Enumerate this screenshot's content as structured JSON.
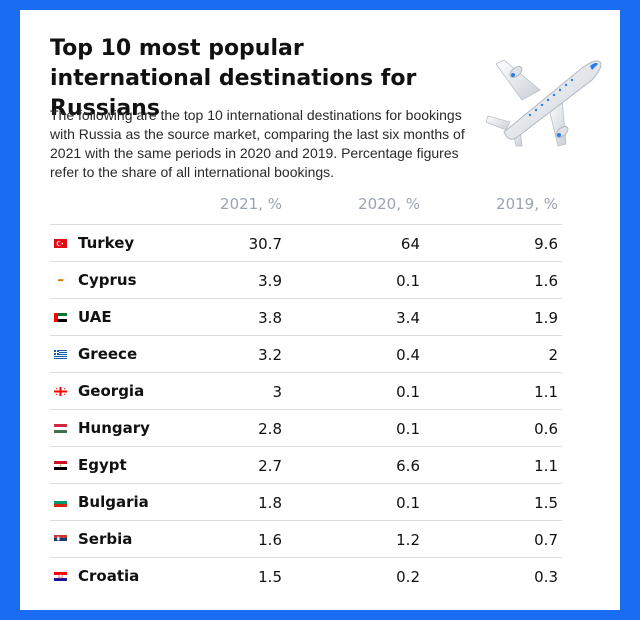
{
  "chart_data": {
    "type": "table",
    "title": "Top 10 most popular international destinations for Russians",
    "subtitle": "The following are the top 10 international destinations for bookings with Russia as the source market, comparing the last six months of 2021 with the same periods in 2020 and 2019. Percentage figures refer to the share of all international bookings.",
    "columns": [
      "2021, %",
      "2020, %",
      "2019, %"
    ],
    "rows": [
      {
        "country": "Turkey",
        "flag": "turkey-flag-icon",
        "values": [
          "30.7",
          "64",
          "9.6"
        ]
      },
      {
        "country": "Cyprus",
        "flag": "cyprus-flag-icon",
        "values": [
          "3.9",
          "0.1",
          "1.6"
        ]
      },
      {
        "country": "UAE",
        "flag": "uae-flag-icon",
        "values": [
          "3.8",
          "3.4",
          "1.9"
        ]
      },
      {
        "country": "Greece",
        "flag": "greece-flag-icon",
        "values": [
          "3.2",
          "0.4",
          "2"
        ]
      },
      {
        "country": "Georgia",
        "flag": "georgia-flag-icon",
        "values": [
          "3",
          "0.1",
          "1.1"
        ]
      },
      {
        "country": "Hungary",
        "flag": "hungary-flag-icon",
        "values": [
          "2.8",
          "0.1",
          "0.6"
        ]
      },
      {
        "country": "Egypt",
        "flag": "egypt-flag-icon",
        "values": [
          "2.7",
          "6.6",
          "1.1"
        ]
      },
      {
        "country": "Bulgaria",
        "flag": "bulgaria-flag-icon",
        "values": [
          "1.8",
          "0.1",
          "1.5"
        ]
      },
      {
        "country": "Serbia",
        "flag": "serbia-flag-icon",
        "values": [
          "1.6",
          "1.2",
          "0.7"
        ]
      },
      {
        "country": "Croatia",
        "flag": "croatia-flag-icon",
        "values": [
          "1.5",
          "0.2",
          "0.3"
        ]
      }
    ]
  },
  "colors": {
    "background": "#1a6cf2",
    "card": "#ffffff",
    "header_text": "#9aa3b1",
    "divider": "#dcdcdc"
  },
  "illustration": "airplane-icon"
}
